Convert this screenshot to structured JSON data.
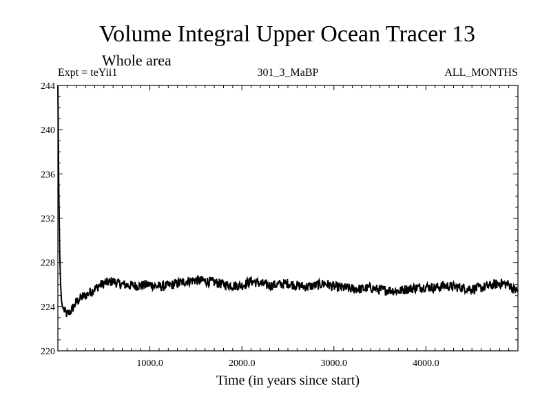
{
  "chart_data": {
    "type": "line",
    "title": "Volume Integral Upper Ocean Tracer 13",
    "subtitle": "Whole area",
    "expt_label": "Expt = teYii1",
    "run_label": "301_3_MaBP",
    "months_label": "ALL_MONTHS",
    "xlabel": "Time (in years since start)",
    "ylabel": "",
    "xlim": [
      0,
      5000
    ],
    "ylim": [
      220,
      244
    ],
    "x_ticks": [
      1000,
      2000,
      3000,
      4000
    ],
    "x_tick_labels": [
      "1000.0",
      "2000.0",
      "3000.0",
      "4000.0"
    ],
    "y_ticks": [
      220,
      224,
      228,
      232,
      236,
      240,
      244
    ],
    "y_tick_labels": [
      "220",
      "224",
      "228",
      "232",
      "236",
      "240",
      "244"
    ],
    "series": [
      {
        "name": "Volume Integral Upper Ocean Tracer 13",
        "x": [
          0,
          10,
          20,
          30,
          40,
          50,
          60,
          80,
          100,
          120,
          150,
          180,
          200,
          250,
          300,
          350,
          400,
          450,
          500,
          550,
          600,
          650,
          700,
          800,
          900,
          1000,
          1100,
          1200,
          1300,
          1400,
          1500,
          1600,
          1700,
          1800,
          1900,
          2000,
          2100,
          2200,
          2300,
          2400,
          2500,
          2600,
          2700,
          2800,
          2900,
          3000,
          3100,
          3200,
          3300,
          3400,
          3500,
          3600,
          3700,
          3800,
          3900,
          4000,
          4100,
          4200,
          4300,
          4400,
          4500,
          4600,
          4700,
          4800,
          4900,
          4950,
          5000
        ],
        "values": [
          244.0,
          235.0,
          229.0,
          226.0,
          224.5,
          224.0,
          223.8,
          223.5,
          223.3,
          223.4,
          223.7,
          224.1,
          224.4,
          224.8,
          225.0,
          225.3,
          225.6,
          225.9,
          226.1,
          226.2,
          226.3,
          226.1,
          226.0,
          225.9,
          225.9,
          226.0,
          225.8,
          225.9,
          226.1,
          226.3,
          226.4,
          226.3,
          226.2,
          226.0,
          225.9,
          225.9,
          226.3,
          226.1,
          225.9,
          226.0,
          226.1,
          225.9,
          225.8,
          225.9,
          226.1,
          225.8,
          225.7,
          225.6,
          225.6,
          225.7,
          225.5,
          225.5,
          225.4,
          225.6,
          225.7,
          225.8,
          225.7,
          225.9,
          225.8,
          225.7,
          225.6,
          225.7,
          225.9,
          226.1,
          226.0,
          225.6,
          225.4
        ]
      }
    ]
  }
}
